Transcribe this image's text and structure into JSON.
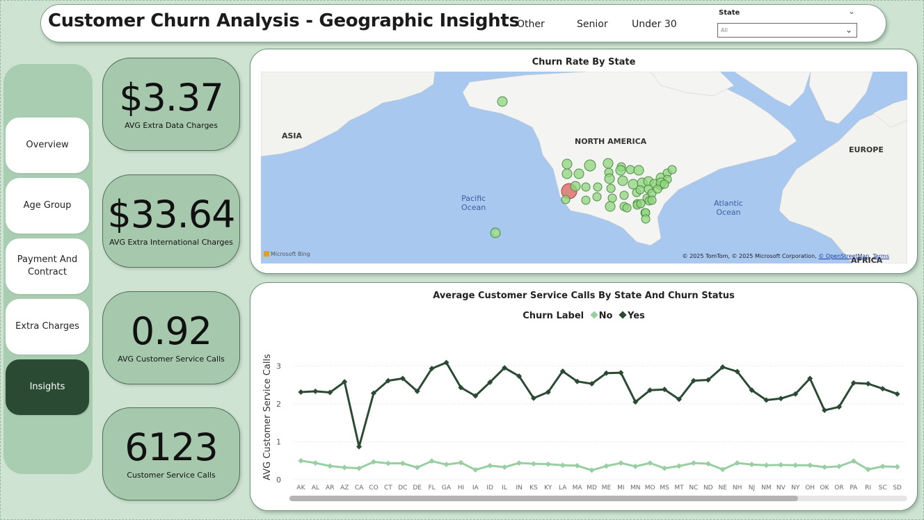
{
  "header": {
    "title": "Customer Churn Analysis - Geographic Insights",
    "segments": [
      "Other",
      "Senior",
      "Under 30"
    ],
    "state_label": "State",
    "state_value": "All"
  },
  "nav": {
    "items": [
      "Overview",
      "Age Group",
      "Payment And Contract",
      "Extra Charges",
      "Insights"
    ],
    "active": "Insights"
  },
  "kpis": [
    {
      "value": "$3.37",
      "label": "AVG Extra Data Charges"
    },
    {
      "value": "$33.64",
      "label": "AVG Extra International Charges"
    },
    {
      "value": "0.92",
      "label": "AVG Customer Service Calls"
    },
    {
      "value": "6123",
      "label": "Customer Service Calls"
    }
  ],
  "map": {
    "title": "Churn Rate By State",
    "labels": {
      "asia": "ASIA",
      "north_america": "NORTH AMERICA",
      "europe": "EUROPE",
      "africa": "AFRICA"
    },
    "oceans": {
      "pacific": "Pacific\nOcean",
      "atlantic": "Atlantic\nOcean"
    },
    "attribution": "© 2025 TomTom, © 2025 Microsoft Corporation,",
    "attribution_link": "© OpenStreetMap",
    "terms": "Terms",
    "bing": "Microsoft Bing",
    "colors": {
      "low": "#8fd67e",
      "high": "#e07a78",
      "water": "#a8c8f0",
      "land": "#f4f4f2"
    }
  },
  "chart_data": {
    "type": "line",
    "title": "Average Customer Service Calls By State And Churn Status",
    "legend_title": "Churn Label",
    "ylabel": "AVG Customer Service Calls",
    "xlabel": "",
    "ylim": [
      0,
      3.3
    ],
    "yticks": [
      0,
      1,
      2,
      3
    ],
    "grid": true,
    "legend_position": "top-center",
    "categories": [
      "AK",
      "AL",
      "AR",
      "AZ",
      "CA",
      "CO",
      "CT",
      "DC",
      "DE",
      "FL",
      "GA",
      "HI",
      "IA",
      "ID",
      "IL",
      "IN",
      "KS",
      "KY",
      "LA",
      "MA",
      "MD",
      "ME",
      "MI",
      "MN",
      "MO",
      "MS",
      "MT",
      "NC",
      "ND",
      "NE",
      "NH",
      "NJ",
      "NM",
      "NV",
      "NY",
      "OH",
      "OK",
      "OR",
      "PA",
      "RI",
      "SC",
      "SD"
    ],
    "series": [
      {
        "name": "No",
        "color": "#98cfa2",
        "values": [
          0.5,
          0.44,
          0.36,
          0.32,
          0.3,
          0.47,
          0.43,
          0.43,
          0.32,
          0.49,
          0.4,
          0.45,
          0.26,
          0.37,
          0.33,
          0.44,
          0.42,
          0.41,
          0.38,
          0.37,
          0.25,
          0.36,
          0.44,
          0.35,
          0.44,
          0.3,
          0.36,
          0.44,
          0.42,
          0.27,
          0.44,
          0.4,
          0.38,
          0.39,
          0.38,
          0.38,
          0.33,
          0.35,
          0.49,
          0.27,
          0.35,
          0.34
        ]
      },
      {
        "name": "Yes",
        "color": "#2b4a33",
        "values": [
          2.31,
          2.33,
          2.3,
          2.58,
          0.87,
          2.28,
          2.61,
          2.67,
          2.33,
          2.93,
          3.09,
          2.43,
          2.21,
          2.57,
          2.95,
          2.73,
          2.15,
          2.31,
          2.86,
          2.59,
          2.53,
          2.81,
          2.82,
          2.05,
          2.36,
          2.38,
          2.12,
          2.61,
          2.63,
          2.97,
          2.85,
          2.36,
          2.1,
          2.14,
          2.26,
          2.67,
          1.83,
          1.92,
          2.55,
          2.53,
          2.4,
          2.26
        ]
      }
    ]
  }
}
